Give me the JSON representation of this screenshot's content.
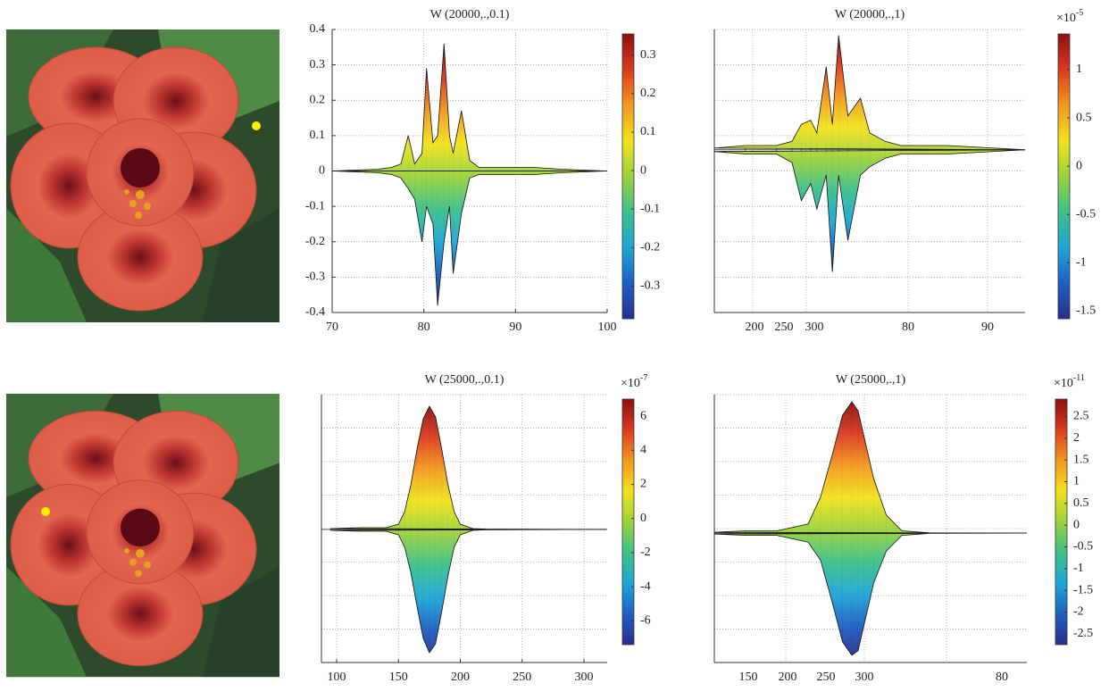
{
  "chart_data": [
    {
      "type": "surface",
      "title": "W (20000,.,0.1)",
      "xlim": [
        70,
        100
      ],
      "xticks": [
        70,
        80,
        90,
        100
      ],
      "ylim": [
        -0.4,
        0.4
      ],
      "yticks": [
        0.4,
        0.3,
        0.2,
        0.1,
        0,
        -0.1,
        -0.2,
        -0.3,
        -0.4
      ],
      "grid": true,
      "colormap": "jet",
      "x": [
        70,
        75,
        76.5,
        77.5,
        78.3,
        79,
        79.8,
        80.3,
        81,
        81.5,
        82.2,
        82.8,
        83.2,
        84.1,
        85,
        86,
        88,
        92,
        95,
        100
      ],
      "series": [
        {
          "values": [
            0,
            0.005,
            0.01,
            0.02,
            0.1,
            0.02,
            0.05,
            0.29,
            0.08,
            0.1,
            0.36,
            0.1,
            0.05,
            0.17,
            0.03,
            0.01,
            0.01,
            0.01,
            0.005,
            0
          ]
        },
        {
          "values": [
            0,
            -0.005,
            -0.01,
            -0.02,
            -0.05,
            -0.08,
            -0.2,
            -0.1,
            -0.15,
            -0.38,
            -0.2,
            -0.1,
            -0.29,
            -0.12,
            -0.02,
            -0.01,
            -0.01,
            -0.01,
            -0.005,
            0
          ]
        }
      ],
      "clim": [
        -0.385,
        0.355
      ],
      "colorbar_ticks": [
        0.3,
        0.2,
        0.1,
        0,
        -0.1,
        -0.2,
        -0.3
      ]
    },
    {
      "type": "surface",
      "title": "W (20000,.,1)",
      "xlim": [
        0,
        1
      ],
      "xtick_labels": [
        "200",
        "250",
        "300",
        "80",
        "90"
      ],
      "ylim": [
        -1.92,
        1.42
      ],
      "grid": true,
      "colormap": "jet",
      "x": [
        0,
        0.1,
        0.2,
        0.25,
        0.28,
        0.31,
        0.33,
        0.36,
        0.38,
        0.4,
        0.43,
        0.47,
        0.5,
        0.55,
        0.6,
        0.75,
        0.85,
        1
      ],
      "series": [
        {
          "values": [
            0.02,
            0.05,
            0.05,
            0.1,
            0.3,
            0.35,
            0.2,
            0.98,
            0.3,
            1.35,
            0.4,
            0.61,
            0.2,
            0.1,
            0.05,
            0.05,
            0.03,
            0
          ]
        },
        {
          "values": [
            -0.02,
            -0.05,
            -0.05,
            -0.15,
            -0.6,
            -0.4,
            -0.7,
            -0.3,
            -1.44,
            -0.3,
            -1.07,
            -0.3,
            -0.2,
            -0.1,
            -0.05,
            -0.05,
            -0.03,
            0
          ]
        }
      ],
      "clim": [
        -1.58,
        1.37
      ],
      "colorbar_ticks": [
        1,
        0.5,
        0,
        -0.5,
        -1,
        -1.5
      ],
      "colorbar_scale": "×10",
      "colorbar_exponent": "-5"
    },
    {
      "type": "surface",
      "title": "W (25000,.,0.1)",
      "xlim": [
        87.7,
        318.8
      ],
      "xticks": [
        100,
        150,
        200,
        250,
        300
      ],
      "ylim": [
        -7.45,
        7.55
      ],
      "grid": true,
      "colormap": "jet",
      "x": [
        95,
        120,
        140,
        150,
        155,
        160,
        165,
        170,
        175,
        180,
        185,
        190,
        195,
        200,
        210,
        230,
        318
      ],
      "series": [
        {
          "values": [
            0.05,
            0.1,
            0.1,
            0.3,
            1,
            2.5,
            4.5,
            6.2,
            6.9,
            6.3,
            4.5,
            2.5,
            1,
            0.3,
            0.05,
            0,
            0
          ]
        },
        {
          "values": [
            -0.05,
            -0.1,
            -0.1,
            -0.3,
            -1,
            -2.4,
            -4.3,
            -6.1,
            -6.9,
            -6.4,
            -4.6,
            -2.6,
            -1,
            -0.3,
            -0.05,
            0,
            0
          ]
        }
      ],
      "clim": [
        -7.4,
        7.0
      ],
      "colorbar_ticks": [
        6,
        4,
        2,
        0,
        -2,
        -4,
        -6
      ],
      "colorbar_scale": "×10",
      "colorbar_exponent": "-7"
    },
    {
      "type": "surface",
      "title": "W (25000,.,1)",
      "xlim": [
        0,
        1
      ],
      "xtick_labels": [
        "150",
        "200",
        "250",
        "300",
        "80"
      ],
      "ylim": [
        -2.86,
        3.06
      ],
      "grid": true,
      "colormap": "jet",
      "x": [
        0,
        0.1,
        0.2,
        0.3,
        0.34,
        0.38,
        0.41,
        0.44,
        0.46,
        0.48,
        0.51,
        0.55,
        0.6,
        0.7,
        1
      ],
      "series": [
        {
          "values": [
            0.02,
            0.05,
            0.05,
            0.2,
            0.8,
            1.8,
            2.6,
            2.9,
            2.7,
            2.1,
            1.2,
            0.4,
            0.05,
            0,
            0
          ]
        },
        {
          "values": [
            -0.02,
            -0.05,
            -0.05,
            -0.2,
            -0.6,
            -1.6,
            -2.4,
            -2.7,
            -2.6,
            -2.0,
            -1.1,
            -0.4,
            -0.05,
            0,
            0
          ]
        }
      ],
      "clim": [
        -2.75,
        2.9
      ],
      "colorbar_ticks": [
        2.5,
        2,
        1.5,
        1,
        0.5,
        0,
        -0.5,
        -1,
        -1.5,
        -2,
        -2.5
      ],
      "colorbar_scale": "×10",
      "colorbar_exponent": "-11"
    }
  ]
}
